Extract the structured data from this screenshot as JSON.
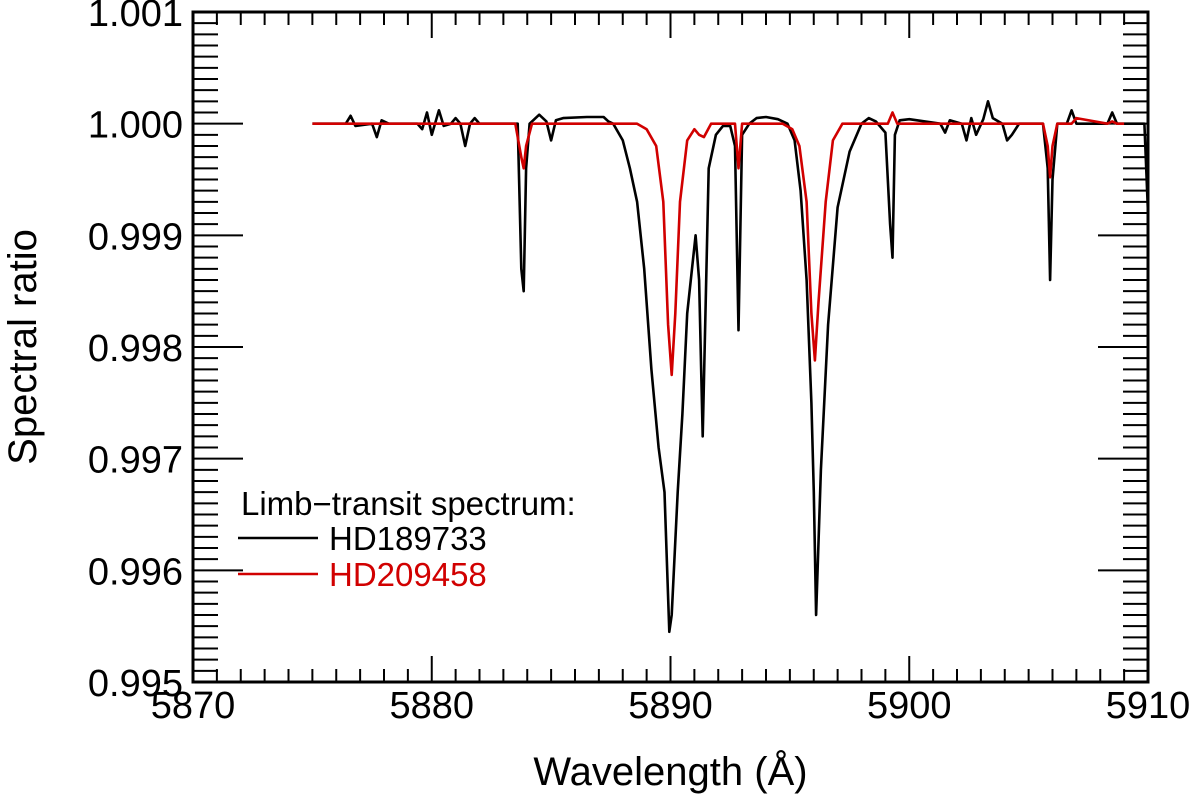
{
  "chart_data": {
    "type": "line",
    "title": "",
    "xlabel": "Wavelength (Å)",
    "ylabel": "Spectral ratio",
    "xlim": [
      5870,
      5910
    ],
    "ylim": [
      0.995,
      1.001
    ],
    "x_ticks": [
      5870,
      5880,
      5890,
      5900,
      5910
    ],
    "x_tick_labels": [
      "5870",
      "5880",
      "5890",
      "5900",
      "5910"
    ],
    "y_ticks": [
      0.995,
      0.996,
      0.997,
      0.998,
      0.999,
      1.0,
      1.001
    ],
    "y_tick_labels": [
      "0.995",
      "0.996",
      "0.997",
      "0.998",
      "0.999",
      "1.000",
      "1.001"
    ],
    "legend_title": "Limb−transit spectrum:",
    "legend_position": "bottom-left",
    "series": [
      {
        "name": "HD189733",
        "color": "#000000",
        "x": [
          5875,
          5876.4,
          5876.6,
          5876.8,
          5877.5,
          5877.7,
          5877.9,
          5878.2,
          5879.4,
          5879.6,
          5879.8,
          5880.0,
          5880.3,
          5880.5,
          5880.8,
          5881.0,
          5881.2,
          5881.4,
          5881.6,
          5881.8,
          5882.0,
          5882.2,
          5883.6,
          5883.75,
          5883.85,
          5883.95,
          5884.1,
          5884.5,
          5884.8,
          5885.0,
          5885.2,
          5885.5,
          5886.5,
          5887.2,
          5887.4,
          5887.6,
          5888.0,
          5888.3,
          5888.6,
          5888.9,
          5889.2,
          5889.5,
          5889.75,
          5889.95,
          5890.05,
          5890.3,
          5890.5,
          5890.7,
          5890.9,
          5891.05,
          5891.2,
          5891.35,
          5891.6,
          5891.9,
          5892.2,
          5892.5,
          5892.7,
          5892.85,
          5893.0,
          5893.3,
          5893.6,
          5894.0,
          5894.5,
          5894.9,
          5895.2,
          5895.45,
          5895.7,
          5895.9,
          5896.0,
          5896.1,
          5896.3,
          5896.6,
          5897.0,
          5897.5,
          5898.0,
          5898.3,
          5898.6,
          5899.0,
          5899.2,
          5899.3,
          5899.4,
          5899.6,
          5900.0,
          5901.3,
          5901.5,
          5901.7,
          5902.2,
          5902.4,
          5902.6,
          5902.8,
          5903.1,
          5903.3,
          5903.5,
          5903.9,
          5904.1,
          5904.3,
          5904.6,
          5905.6,
          5905.8,
          5905.9,
          5906.0,
          5906.2,
          5906.6,
          5906.8,
          5907.0,
          5908.3,
          5908.5,
          5908.7,
          5909.5,
          5909.85,
          5910.0
        ],
        "values": [
          1.0,
          1.0,
          1.00007,
          0.99998,
          1.0,
          0.99988,
          1.00003,
          1.0,
          1.0,
          0.99995,
          1.0001,
          0.9999,
          1.00012,
          0.99998,
          1.0,
          1.00005,
          1.0,
          0.9998,
          1.0,
          1.00005,
          1.0,
          1.0,
          1.0,
          0.9987,
          0.9985,
          0.9996,
          1.0,
          1.00008,
          1.00002,
          0.99985,
          1.00003,
          1.00005,
          1.00006,
          1.00006,
          1.00002,
          1.0,
          0.99985,
          0.9996,
          0.9993,
          0.9987,
          0.9978,
          0.9971,
          0.9967,
          0.99545,
          0.9956,
          0.9967,
          0.9974,
          0.9983,
          0.9987,
          0.999,
          0.9986,
          0.9972,
          0.9996,
          0.9999,
          0.99998,
          0.99998,
          0.9998,
          0.99815,
          0.9999,
          1.0,
          1.00005,
          1.00006,
          1.00004,
          1.0,
          0.99985,
          0.9994,
          0.9986,
          0.9975,
          0.9967,
          0.9956,
          0.9969,
          0.9982,
          0.99925,
          0.99975,
          1.0,
          1.00005,
          1.00002,
          0.99992,
          0.9991,
          0.9988,
          0.9999,
          1.00003,
          1.00004,
          1.0,
          0.99992,
          1.00003,
          1.0,
          0.99985,
          1.00005,
          0.9999,
          1.00004,
          1.0002,
          1.00005,
          1.0,
          0.99985,
          0.9999,
          1.0,
          1.0,
          0.9996,
          0.9986,
          0.9995,
          1.0,
          1.0,
          1.00012,
          1.0,
          1.0,
          1.0001,
          1.0,
          1.0,
          1.0,
          0.9992
        ]
      },
      {
        "name": "HD209458",
        "color": "#d10000",
        "x": [
          5875,
          5883.5,
          5883.75,
          5883.85,
          5883.95,
          5884.2,
          5888.6,
          5889.0,
          5889.4,
          5889.7,
          5889.9,
          5890.05,
          5890.2,
          5890.4,
          5890.7,
          5891.0,
          5891.2,
          5891.4,
          5891.7,
          5892.7,
          5892.85,
          5893.0,
          5894.7,
          5895.1,
          5895.4,
          5895.7,
          5895.9,
          5896.05,
          5896.2,
          5896.5,
          5896.8,
          5897.2,
          5898.0,
          5899.1,
          5899.3,
          5899.5,
          5900.0,
          5905.6,
          5905.8,
          5905.9,
          5906.0,
          5906.2,
          5906.8,
          5907.0,
          5908.3,
          5908.5,
          5908.7,
          5909.0
        ],
        "values": [
          1.0,
          1.0,
          0.9997,
          0.9996,
          0.9998,
          1.0,
          1.0,
          0.99995,
          0.9998,
          0.9993,
          0.9982,
          0.99775,
          0.9983,
          0.9993,
          0.99985,
          0.99995,
          0.9999,
          0.99988,
          1.0,
          1.0,
          0.9996,
          1.0,
          1.0,
          0.99995,
          0.9998,
          0.9993,
          0.9983,
          0.99788,
          0.9984,
          0.9993,
          0.99985,
          1.0,
          1.0,
          1.0,
          1.0001,
          1.0,
          1.0,
          1.0,
          0.9998,
          0.99952,
          0.9998,
          1.0,
          1.0,
          1.00005,
          1.0,
          1.00002,
          1.0,
          1.0
        ]
      }
    ]
  }
}
